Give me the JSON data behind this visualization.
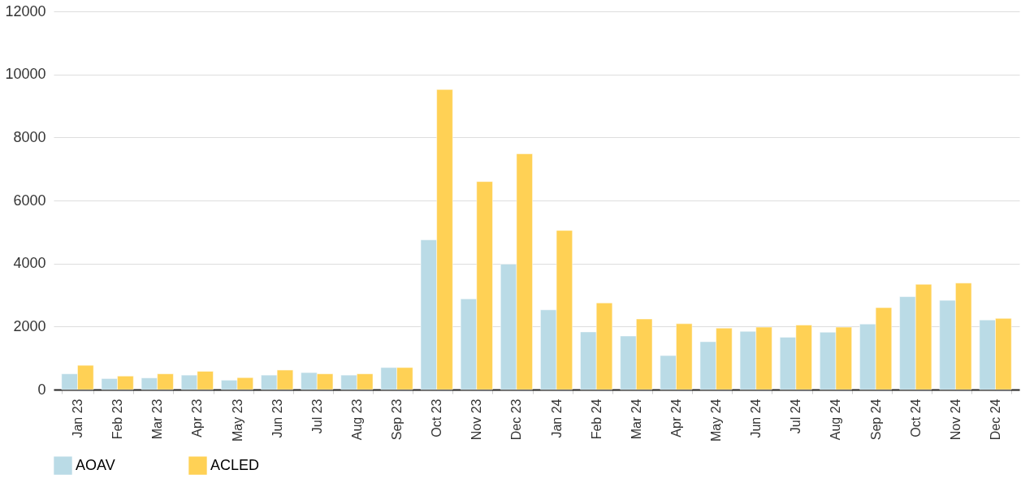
{
  "chart_data": {
    "type": "bar",
    "categories": [
      "Jan 23",
      "Feb 23",
      "Mar 23",
      "Apr 23",
      "May 23",
      "Jun 23",
      "Jul 23",
      "Aug 23",
      "Sep 23",
      "Oct 23",
      "Nov 23",
      "Dec 23",
      "Jan 24",
      "Feb 24",
      "Mar 24",
      "Apr 24",
      "May 24",
      "Jun 24",
      "Jul 24",
      "Aug 24",
      "Sep 24",
      "Oct 24",
      "Nov 24",
      "Dec 24"
    ],
    "series": [
      {
        "name": "AOAV",
        "color": "#badbe6",
        "values": [
          500,
          350,
          370,
          460,
          300,
          460,
          540,
          460,
          700,
          4750,
          2880,
          3980,
          2530,
          1830,
          1700,
          1080,
          1520,
          1850,
          1660,
          1820,
          2080,
          2950,
          2830,
          2210
        ]
      },
      {
        "name": "ACLED",
        "color": "#ffd155",
        "values": [
          770,
          430,
          500,
          580,
          380,
          620,
          500,
          500,
          700,
          9520,
          6600,
          7480,
          5050,
          2750,
          2240,
          2090,
          1950,
          1980,
          2050,
          1980,
          2600,
          3340,
          3380,
          2260
        ]
      }
    ],
    "ylim": [
      0,
      12000
    ],
    "yticks": [
      0,
      2000,
      4000,
      6000,
      8000,
      10000,
      12000
    ],
    "grid": "y",
    "legend": "bottom"
  }
}
